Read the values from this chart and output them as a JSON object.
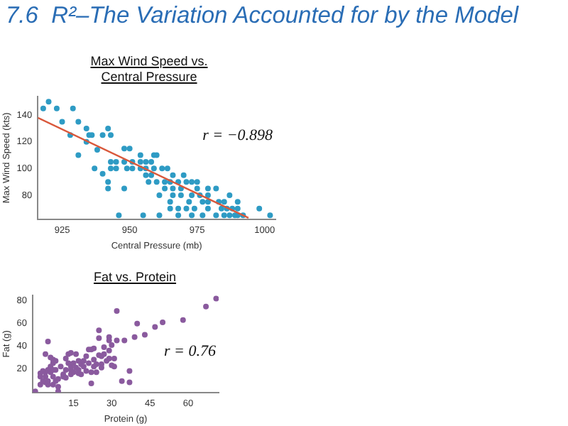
{
  "chart_data": [
    {
      "type": "other",
      "title": "7.6  R²–The Variation Accounted for by the Model"
    },
    {
      "type": "scatter",
      "title": "Max Wind Speed vs. Central Pressure",
      "xlabel": "Central Pressure (mb)",
      "ylabel": "Max Wind Speed (kts)",
      "xlim": [
        916,
        1004
      ],
      "ylim": [
        62,
        154
      ],
      "xticks": [
        925,
        950,
        975,
        1000
      ],
      "yticks": [
        80,
        100,
        120,
        140
      ],
      "annotations": [
        "r = −0.898"
      ],
      "series": [
        {
          "type": "scatter",
          "marker": "circle",
          "color": "#2e9bc4",
          "x": [
            920,
            918,
            923,
            929,
            925,
            931,
            928,
            934,
            935,
            936,
            934,
            940,
            943,
            942,
            931,
            937,
            940,
            942,
            943,
            945,
            938,
            943,
            945,
            948,
            948,
            950,
            949,
            951,
            954,
            956,
            951,
            954,
            956,
            958,
            954,
            959,
            960,
            956,
            958,
            959,
            962,
            964,
            957,
            960,
            963,
            965,
            966,
            961,
            963,
            966,
            968,
            969,
            971,
            973,
            975,
            970,
            966,
            969,
            973,
            975,
            976,
            979,
            979,
            982,
            977,
            979,
            983,
            985,
            987,
            965,
            965,
            968,
            971,
            972,
            974,
            979,
            984,
            986,
            988,
            990,
            990,
            990,
            987,
            985,
            982,
            977,
            973,
            968,
            961,
            955,
            946,
            942,
            948,
            998,
            1002,
            989,
            992
          ],
          "values": [
            150,
            145,
            145,
            145,
            135,
            135,
            125,
            130,
            125,
            125,
            120,
            125,
            125,
            130,
            110,
            100,
            96,
            90,
            100,
            100,
            114,
            105,
            105,
            105,
            115,
            115,
            100,
            100,
            100,
            100,
            105,
            105,
            105,
            105,
            110,
            110,
            110,
            95,
            95,
            100,
            100,
            100,
            90,
            90,
            90,
            90,
            95,
            80,
            85,
            85,
            90,
            85,
            90,
            90,
            90,
            95,
            80,
            80,
            80,
            85,
            80,
            80,
            85,
            85,
            75,
            75,
            75,
            75,
            80,
            75,
            70,
            70,
            70,
            75,
            70,
            70,
            70,
            70,
            70,
            75,
            70,
            65,
            65,
            65,
            65,
            65,
            65,
            65,
            65,
            65,
            65,
            85,
            85,
            70,
            65,
            65,
            65
          ]
        },
        {
          "type": "line",
          "color": "#d9583b",
          "x": [
            916,
            994
          ],
          "values": [
            138,
            63
          ]
        }
      ]
    },
    {
      "type": "scatter",
      "title": "Fat vs. Protein",
      "xlabel": "Protein (g)",
      "ylabel": "Fat (g)",
      "xlim": [
        -1,
        72
      ],
      "ylim": [
        -1,
        85
      ],
      "xticks": [
        15,
        30,
        45,
        60
      ],
      "yticks": [
        20,
        40,
        60,
        80
      ],
      "annotations": [
        "r = 0.76"
      ],
      "series": [
        {
          "type": "scatter",
          "marker": "circle",
          "color": "#8a5a9e",
          "x": [
            0,
            2,
            2,
            2,
            3,
            3,
            4,
            4,
            4,
            5,
            5,
            5,
            4,
            5,
            6,
            6,
            7,
            7,
            7,
            8,
            7,
            8,
            9,
            9,
            6,
            7,
            8,
            9,
            11,
            10,
            11,
            12,
            12,
            12,
            13,
            13,
            14,
            14,
            14,
            14,
            15,
            15,
            16,
            16,
            17,
            17,
            17,
            18,
            18,
            19,
            19,
            20,
            20,
            21,
            21,
            22,
            22,
            22,
            23,
            23,
            23,
            24,
            24,
            25,
            25,
            25,
            26,
            26,
            26,
            27,
            27,
            28,
            29,
            29,
            29,
            29,
            30,
            30,
            31,
            31,
            32,
            32,
            34,
            35,
            37,
            37,
            39,
            40,
            43,
            47,
            50,
            58,
            67,
            71
          ],
          "values": [
            0,
            6,
            13,
            16,
            9,
            18,
            8,
            17,
            13,
            6,
            19,
            9,
            33,
            44,
            22,
            17,
            25,
            13,
            6,
            27,
            19,
            9,
            4,
            0,
            30,
            28,
            19,
            11,
            13,
            22,
            15,
            12,
            19,
            29,
            25,
            33,
            34,
            22,
            15,
            19,
            25,
            17,
            21,
            33,
            27,
            16,
            19,
            24,
            15,
            27,
            22,
            18,
            31,
            37,
            25,
            37,
            17,
            7,
            38,
            28,
            22,
            17,
            24,
            54,
            47,
            32,
            21,
            31,
            24,
            33,
            39,
            27,
            48,
            45,
            36,
            29,
            23,
            41,
            29,
            22,
            71,
            45,
            9,
            45,
            8,
            18,
            48,
            60,
            50,
            57,
            61,
            63,
            75,
            82
          ]
        }
      ]
    }
  ]
}
